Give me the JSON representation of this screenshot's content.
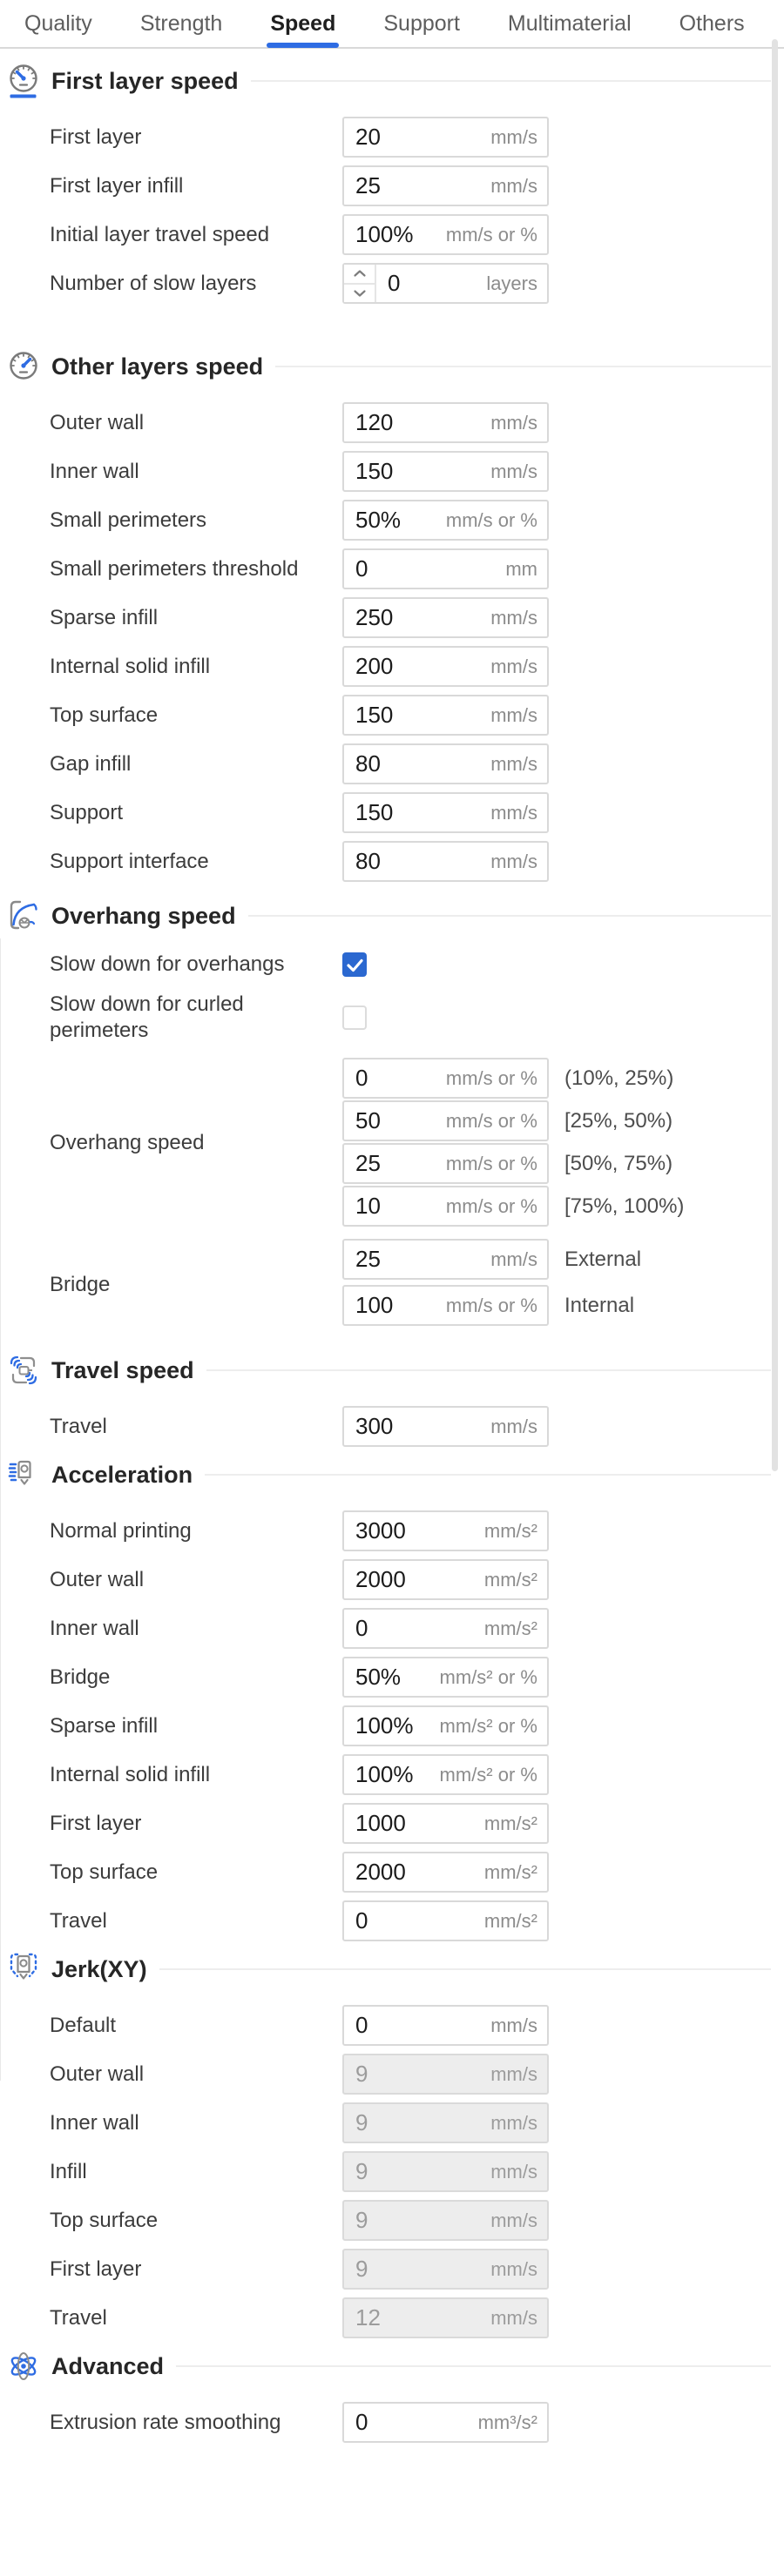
{
  "colors": {
    "accent_blue": "#2e6ce3",
    "checkbox_blue": "#2b68d0"
  },
  "tabs": {
    "items": [
      {
        "label": "Quality",
        "active": false
      },
      {
        "label": "Strength",
        "active": false
      },
      {
        "label": "Speed",
        "active": true
      },
      {
        "label": "Support",
        "active": false
      },
      {
        "label": "Multimaterial",
        "active": false
      },
      {
        "label": "Others",
        "active": false
      }
    ]
  },
  "sections": [
    {
      "title": "First layer speed",
      "icon": "first-layer-speed-gauge-icon",
      "rows": [
        {
          "type": "input",
          "label": "First layer",
          "value": "20",
          "unit": "mm/s"
        },
        {
          "type": "input",
          "label": "First layer infill",
          "value": "25",
          "unit": "mm/s"
        },
        {
          "type": "input",
          "label": "Initial layer travel speed",
          "value": "100%",
          "unit": "mm/s or %"
        },
        {
          "type": "spinner",
          "label": "Number of slow layers",
          "value": "0",
          "unit": "layers"
        }
      ]
    },
    {
      "title": "Other layers speed",
      "icon": "other-layers-speed-gauge-icon",
      "rows": [
        {
          "type": "input",
          "label": "Outer wall",
          "value": "120",
          "unit": "mm/s"
        },
        {
          "type": "input",
          "label": "Inner wall",
          "value": "150",
          "unit": "mm/s"
        },
        {
          "type": "input",
          "label": "Small perimeters",
          "value": "50%",
          "unit": "mm/s or %"
        },
        {
          "type": "input",
          "label": "Small perimeters threshold",
          "value": "0",
          "unit": "mm"
        },
        {
          "type": "input",
          "label": "Sparse infill",
          "value": "250",
          "unit": "mm/s"
        },
        {
          "type": "input",
          "label": "Internal solid infill",
          "value": "200",
          "unit": "mm/s"
        },
        {
          "type": "input",
          "label": "Top surface",
          "value": "150",
          "unit": "mm/s"
        },
        {
          "type": "input",
          "label": "Gap infill",
          "value": "80",
          "unit": "mm/s"
        },
        {
          "type": "input",
          "label": "Support",
          "value": "150",
          "unit": "mm/s"
        },
        {
          "type": "input",
          "label": "Support interface",
          "value": "80",
          "unit": "mm/s"
        }
      ]
    },
    {
      "title": "Overhang speed",
      "icon": "overhang-speed-icon",
      "rows": [
        {
          "type": "checkbox",
          "label": "Slow down for overhangs",
          "checked": true
        },
        {
          "type": "checkbox",
          "label": "Slow down for curled perimeters",
          "checked": false
        },
        {
          "type": "group",
          "label": "Overhang speed",
          "fields": [
            {
              "value": "0",
              "unit": "mm/s or %",
              "note": "(10%, 25%)"
            },
            {
              "value": "50",
              "unit": "mm/s or %",
              "note": "[25%, 50%)"
            },
            {
              "value": "25",
              "unit": "mm/s or %",
              "note": "[50%, 75%)"
            },
            {
              "value": "10",
              "unit": "mm/s or %",
              "note": "[75%, 100%)"
            }
          ]
        },
        {
          "type": "group",
          "label": "Bridge",
          "fields": [
            {
              "value": "25",
              "unit": "mm/s",
              "note": "External"
            },
            {
              "value": "100",
              "unit": "mm/s or %",
              "note": "Internal"
            }
          ]
        }
      ]
    },
    {
      "title": "Travel speed",
      "icon": "travel-speed-icon",
      "rows": [
        {
          "type": "input",
          "label": "Travel",
          "value": "300",
          "unit": "mm/s"
        }
      ]
    },
    {
      "title": "Acceleration",
      "icon": "acceleration-nozzle-icon",
      "rows": [
        {
          "type": "input",
          "label": "Normal printing",
          "value": "3000",
          "unit": "mm/s²"
        },
        {
          "type": "input",
          "label": "Outer wall",
          "value": "2000",
          "unit": "mm/s²"
        },
        {
          "type": "input",
          "label": "Inner wall",
          "value": "0",
          "unit": "mm/s²"
        },
        {
          "type": "input",
          "label": "Bridge",
          "value": "50%",
          "unit": "mm/s² or %"
        },
        {
          "type": "input",
          "label": "Sparse infill",
          "value": "100%",
          "unit": "mm/s² or %"
        },
        {
          "type": "input",
          "label": "Internal solid infill",
          "value": "100%",
          "unit": "mm/s² or %"
        },
        {
          "type": "input",
          "label": "First layer",
          "value": "1000",
          "unit": "mm/s²"
        },
        {
          "type": "input",
          "label": "Top surface",
          "value": "2000",
          "unit": "mm/s²"
        },
        {
          "type": "input",
          "label": "Travel",
          "value": "0",
          "unit": "mm/s²"
        }
      ]
    },
    {
      "title": "Jerk(XY)",
      "icon": "jerk-nozzle-icon",
      "rows": [
        {
          "type": "input",
          "label": "Default",
          "value": "0",
          "unit": "mm/s"
        },
        {
          "type": "input",
          "label": "Outer wall",
          "value": "9",
          "unit": "mm/s",
          "disabled": true
        },
        {
          "type": "input",
          "label": "Inner wall",
          "value": "9",
          "unit": "mm/s",
          "disabled": true
        },
        {
          "type": "input",
          "label": "Infill",
          "value": "9",
          "unit": "mm/s",
          "disabled": true
        },
        {
          "type": "input",
          "label": "Top surface",
          "value": "9",
          "unit": "mm/s",
          "disabled": true
        },
        {
          "type": "input",
          "label": "First layer",
          "value": "9",
          "unit": "mm/s",
          "disabled": true
        },
        {
          "type": "input",
          "label": "Travel",
          "value": "12",
          "unit": "mm/s",
          "disabled": true
        }
      ]
    },
    {
      "title": "Advanced",
      "icon": "advanced-atom-icon",
      "rows": [
        {
          "type": "input",
          "label": "Extrusion rate smoothing",
          "value": "0",
          "unit": "mm³/s²"
        }
      ]
    }
  ]
}
